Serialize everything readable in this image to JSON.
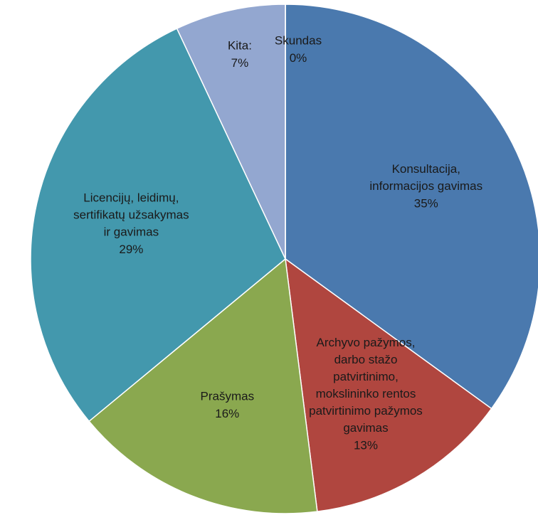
{
  "chart_data": {
    "type": "pie",
    "categories": [
      "Konsultacija,\ninformacijos gavimas",
      "Archyvo pažymos,\ndarbo stažo\npatvirtinimo,\nmokslininko rentos\npatvirtinimo pažymos\ngavimas",
      "Prašymas",
      "Licencijų, leidimų,\nsertifikatų užsakymas\nir gavimas",
      "Kita:",
      "Skundas"
    ],
    "values": [
      35,
      13,
      16,
      29,
      7,
      0
    ],
    "value_labels": [
      "35%",
      "13%",
      "16%",
      "29%",
      "7%",
      "0%"
    ],
    "colors": [
      "#4a79ae",
      "#b0463f",
      "#8aa84f",
      "#4398ad",
      "#93a7d0",
      "#7f63a0"
    ]
  }
}
